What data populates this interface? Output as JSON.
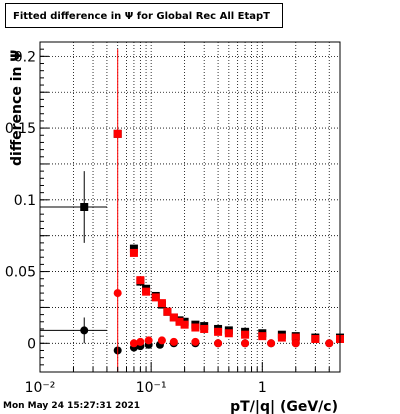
{
  "title": "Fitted difference in Ψ  for Global Rec All EtapT",
  "timestamp": "Mon May 24 15:27:31 2021",
  "chart_data": {
    "type": "scatter",
    "title": "Fitted difference in Ψ  for Global Rec All EtapT",
    "xlabel": "pT/|q| (GeV/c)",
    "ylabel": "difference in Ψ",
    "xscale": "log",
    "xlim": [
      0.01,
      5.0
    ],
    "ylim": [
      -0.02,
      0.21
    ],
    "grid": true,
    "x_ticks": [
      {
        "value": 0.01,
        "label": "10⁻²"
      },
      {
        "value": 0.1,
        "label": "10⁻¹"
      },
      {
        "value": 1,
        "label": "1"
      }
    ],
    "y_ticks": [
      {
        "value": 0,
        "label": "0"
      },
      {
        "value": 0.05,
        "label": "0.05"
      },
      {
        "value": 0.1,
        "label": "0.1"
      },
      {
        "value": 0.15,
        "label": "0.15"
      },
      {
        "value": 0.2,
        "label": "0.2"
      }
    ],
    "colors": {
      "black_series": "#000000",
      "red_series": "#ff0000"
    },
    "series": [
      {
        "marker": "square",
        "color": "#000000",
        "points": [
          {
            "x": 0.025,
            "y": 0.095,
            "xerr": 0.015,
            "yerr": 0.025
          },
          {
            "x": 0.05,
            "y": 0.146
          },
          {
            "x": 0.07,
            "y": 0.066
          },
          {
            "x": 0.08,
            "y": 0.043
          },
          {
            "x": 0.09,
            "y": 0.038
          },
          {
            "x": 0.11,
            "y": 0.033
          },
          {
            "x": 0.125,
            "y": 0.027
          },
          {
            "x": 0.14,
            "y": 0.022
          },
          {
            "x": 0.16,
            "y": 0.018
          },
          {
            "x": 0.18,
            "y": 0.016
          },
          {
            "x": 0.2,
            "y": 0.015
          },
          {
            "x": 0.25,
            "y": 0.013
          },
          {
            "x": 0.3,
            "y": 0.012
          },
          {
            "x": 0.4,
            "y": 0.01
          },
          {
            "x": 0.5,
            "y": 0.009
          },
          {
            "x": 0.7,
            "y": 0.008
          },
          {
            "x": 1.0,
            "y": 0.007
          },
          {
            "x": 1.5,
            "y": 0.006
          },
          {
            "x": 2.0,
            "y": 0.005
          },
          {
            "x": 3.0,
            "y": 0.004
          },
          {
            "x": 5.0,
            "y": 0.004
          }
        ]
      },
      {
        "marker": "square",
        "color": "#ff0000",
        "points": [
          {
            "x": 0.05,
            "y": 0.146
          },
          {
            "x": 0.07,
            "y": 0.063
          },
          {
            "x": 0.08,
            "y": 0.044
          },
          {
            "x": 0.09,
            "y": 0.036
          },
          {
            "x": 0.11,
            "y": 0.032
          },
          {
            "x": 0.125,
            "y": 0.028
          },
          {
            "x": 0.14,
            "y": 0.022
          },
          {
            "x": 0.16,
            "y": 0.018
          },
          {
            "x": 0.18,
            "y": 0.015
          },
          {
            "x": 0.2,
            "y": 0.013
          },
          {
            "x": 0.25,
            "y": 0.011
          },
          {
            "x": 0.3,
            "y": 0.01
          },
          {
            "x": 0.4,
            "y": 0.008
          },
          {
            "x": 0.5,
            "y": 0.007
          },
          {
            "x": 0.7,
            "y": 0.006
          },
          {
            "x": 1.0,
            "y": 0.005
          },
          {
            "x": 1.5,
            "y": 0.004
          },
          {
            "x": 2.0,
            "y": 0.004
          },
          {
            "x": 3.0,
            "y": 0.003
          },
          {
            "x": 5.0,
            "y": 0.003
          }
        ]
      },
      {
        "marker": "circle",
        "color": "#000000",
        "points": [
          {
            "x": 0.025,
            "y": 0.009,
            "xerr": 0.015,
            "yerr": 0.009
          },
          {
            "x": 0.05,
            "y": -0.005
          },
          {
            "x": 0.07,
            "y": -0.003
          },
          {
            "x": 0.08,
            "y": -0.002
          },
          {
            "x": 0.095,
            "y": -0.001
          },
          {
            "x": 0.12,
            "y": -0.001
          },
          {
            "x": 0.16,
            "y": 0.0
          },
          {
            "x": 0.25,
            "y": 0.0
          },
          {
            "x": 0.4,
            "y": 0.0
          },
          {
            "x": 0.7,
            "y": 0.0
          },
          {
            "x": 1.2,
            "y": 0.0
          },
          {
            "x": 2.0,
            "y": 0.0
          },
          {
            "x": 4.0,
            "y": 0.0
          }
        ]
      },
      {
        "marker": "circle",
        "color": "#ff0000",
        "points": [
          {
            "x": 0.05,
            "y": 0.035,
            "yerr": 0.17
          },
          {
            "x": 0.07,
            "y": 0.0
          },
          {
            "x": 0.08,
            "y": 0.001
          },
          {
            "x": 0.095,
            "y": 0.002
          },
          {
            "x": 0.125,
            "y": 0.002
          },
          {
            "x": 0.16,
            "y": 0.001
          },
          {
            "x": 0.25,
            "y": 0.001
          },
          {
            "x": 0.4,
            "y": 0.0
          },
          {
            "x": 0.7,
            "y": 0.0
          },
          {
            "x": 1.2,
            "y": 0.0
          },
          {
            "x": 2.0,
            "y": 0.0
          },
          {
            "x": 4.0,
            "y": 0.0
          }
        ]
      }
    ]
  }
}
